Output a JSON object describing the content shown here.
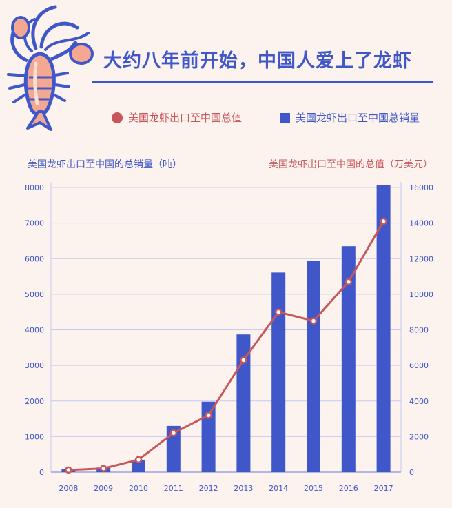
{
  "header": {
    "title": "大约八年前开始，中国人爱上了龙虾"
  },
  "colors": {
    "bars": "#3f57c9",
    "line": "#c8565a",
    "grid": "#c5caf0",
    "background": "#fdf3ee"
  },
  "logo": {
    "icon": "lobster-icon"
  },
  "chart_data": {
    "type": "bar",
    "categories": [
      "2008",
      "2009",
      "2010",
      "2011",
      "2012",
      "2013",
      "2014",
      "2015",
      "2016",
      "2017"
    ],
    "series": [
      {
        "name": "美国龙虾出口至中国总销量",
        "type": "bar",
        "axis": "left",
        "values": [
          80,
          130,
          350,
          1300,
          1980,
          3870,
          5610,
          5930,
          6350,
          8070
        ]
      },
      {
        "name": "美国龙虾出口至中国总值",
        "type": "line",
        "axis": "right",
        "values": [
          120,
          210,
          700,
          2200,
          3200,
          6300,
          9000,
          8500,
          10700,
          14100
        ]
      }
    ],
    "ylabel": "美国龙虾出口至中国的总销量（吨）",
    "y2label": "美国龙虾出口至中国的总值（万美元）",
    "ylim": [
      0,
      8000
    ],
    "y2lim": [
      0,
      16000
    ],
    "yticks": [
      0,
      1000,
      2000,
      3000,
      4000,
      5000,
      6000,
      7000,
      8000
    ],
    "y2ticks": [
      0,
      2000,
      4000,
      6000,
      8000,
      10000,
      12000,
      14000,
      16000
    ],
    "grid": true,
    "legend_position": "top"
  }
}
